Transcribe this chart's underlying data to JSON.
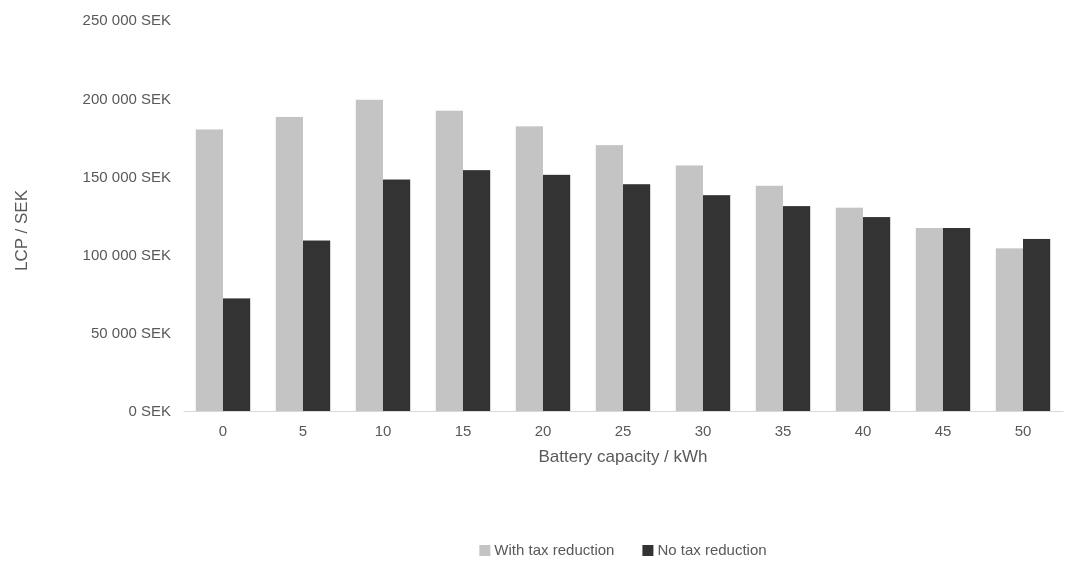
{
  "chart_data": {
    "type": "bar",
    "xlabel": "Battery capacity / kWh",
    "ylabel": "LCP / SEK",
    "categories": [
      "0",
      "5",
      "10",
      "15",
      "20",
      "25",
      "30",
      "35",
      "40",
      "45",
      "50"
    ],
    "series": [
      {
        "name": "With tax reduction",
        "color": "#c4c4c4",
        "values": [
          180000,
          188000,
          199000,
          192000,
          182000,
          170000,
          157000,
          144000,
          130000,
          117000,
          104000
        ]
      },
      {
        "name": "No tax reduction",
        "color": "#333333",
        "values": [
          72000,
          109000,
          148000,
          154000,
          151000,
          145000,
          138000,
          131000,
          124000,
          117000,
          110000
        ]
      }
    ],
    "ylim": [
      0,
      250000
    ],
    "yticks": [
      {
        "value": 0,
        "label": "0 SEK"
      },
      {
        "value": 50000,
        "label": "50 000 SEK"
      },
      {
        "value": 100000,
        "label": "100 000 SEK"
      },
      {
        "value": 150000,
        "label": "150 000 SEK"
      },
      {
        "value": 200000,
        "label": "200 000 SEK"
      },
      {
        "value": 250000,
        "label": "250 000 SEK"
      }
    ],
    "grid": false,
    "legend": "bottom"
  }
}
